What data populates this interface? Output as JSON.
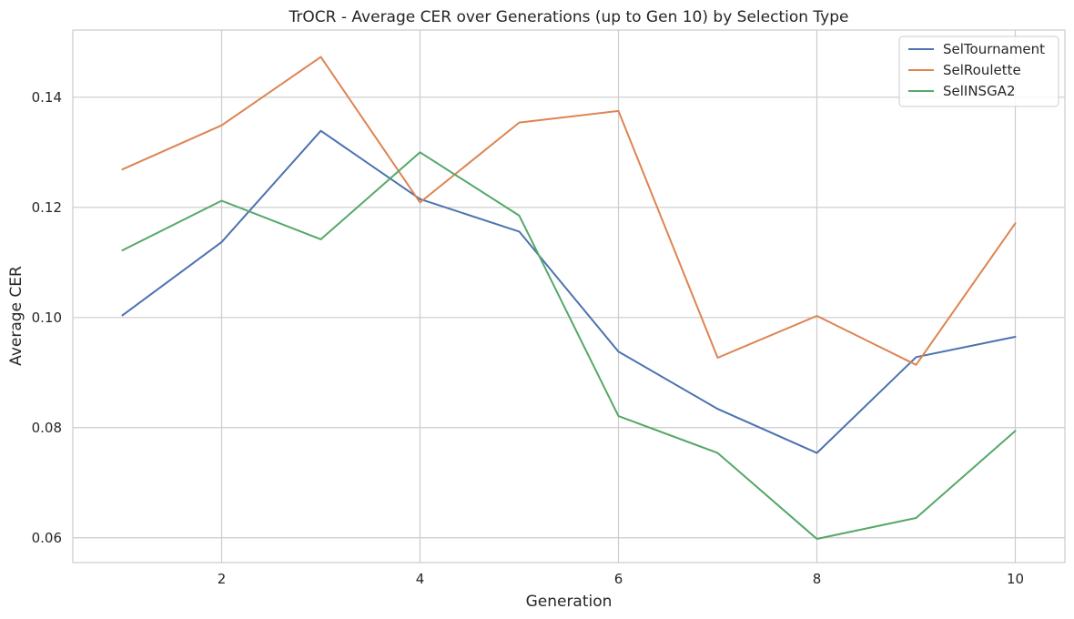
{
  "chart_data": {
    "type": "line",
    "title": "TrOCR - Average CER over Generations (up to Gen 10) by Selection Type",
    "xlabel": "Generation",
    "ylabel": "Average CER",
    "x": [
      1,
      2,
      3,
      4,
      5,
      6,
      7,
      8,
      9,
      10
    ],
    "xlim": [
      0.5,
      10.5
    ],
    "ylim": [
      0.0555,
      0.1522
    ],
    "xticks": [
      2,
      4,
      6,
      8,
      10
    ],
    "yticks": [
      0.06,
      0.08,
      0.1,
      0.12,
      0.14
    ],
    "ytick_labels": [
      "0.06",
      "0.08",
      "0.10",
      "0.12",
      "0.14"
    ],
    "grid": true,
    "legend_position": "top-right",
    "series": [
      {
        "name": "SelTournament",
        "color": "#4c72b0",
        "values": [
          0.1004,
          0.1137,
          0.1339,
          0.1215,
          0.1156,
          0.0938,
          0.0834,
          0.0754,
          0.0928,
          0.0965
        ]
      },
      {
        "name": "SelRoulette",
        "color": "#dd8452",
        "values": [
          0.1269,
          0.1349,
          0.1473,
          0.1209,
          0.1354,
          0.1375,
          0.0927,
          0.1003,
          0.0914,
          0.1171
        ]
      },
      {
        "name": "SelINSGA2",
        "color": "#55a868",
        "values": [
          0.1122,
          0.1212,
          0.1142,
          0.13,
          0.1185,
          0.0821,
          0.0754,
          0.0598,
          0.0636,
          0.0794
        ]
      }
    ]
  }
}
